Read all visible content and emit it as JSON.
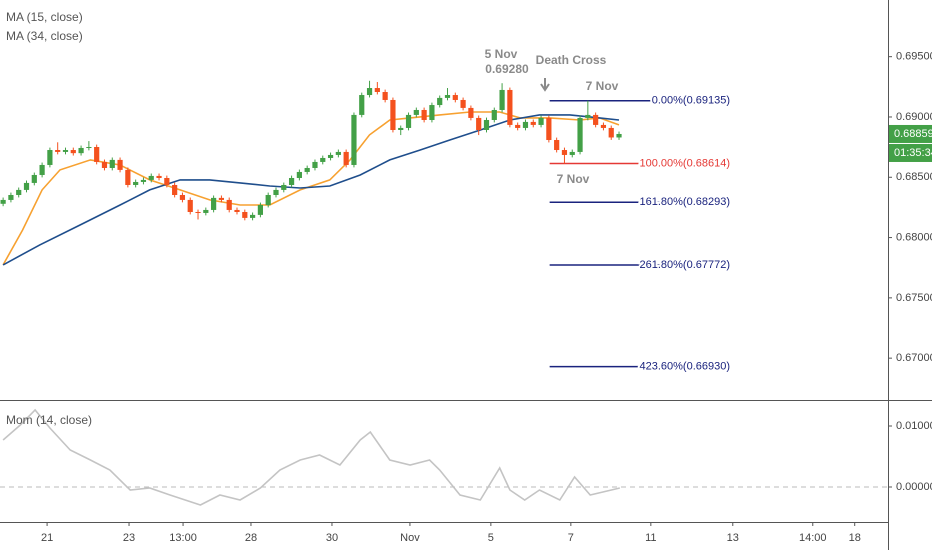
{
  "chart_data": [
    {
      "type": "candlestick",
      "up_color": "#43a047",
      "down_color": "#f4511e",
      "x": [
        0,
        1,
        2,
        3,
        4,
        5,
        6,
        7,
        8,
        9,
        10,
        11,
        12,
        13,
        14,
        15,
        16,
        17,
        18,
        19,
        20,
        21,
        22,
        23,
        24,
        25,
        26,
        27,
        28,
        29,
        30,
        31,
        32,
        33,
        34,
        35,
        36,
        37,
        38,
        39,
        40,
        41,
        42,
        43,
        44,
        45,
        46,
        47,
        48,
        49,
        50,
        51,
        52,
        53,
        54,
        55,
        56,
        57,
        58,
        59,
        60,
        61,
        62,
        63,
        64,
        65,
        66,
        67,
        68,
        69,
        70,
        71,
        72,
        73,
        74,
        75,
        76,
        77,
        78,
        79
      ],
      "open": [
        0.6828,
        0.68312,
        0.68353,
        0.68395,
        0.68453,
        0.68519,
        0.68602,
        0.68726,
        0.6871,
        0.68726,
        0.687,
        0.68743,
        0.68751,
        0.68627,
        0.68577,
        0.68644,
        0.68561,
        0.68436,
        0.68461,
        0.68478,
        0.68511,
        0.68494,
        0.68436,
        0.68353,
        0.68312,
        0.68212,
        0.68204,
        0.68229,
        0.68329,
        0.68312,
        0.68229,
        0.68212,
        0.68163,
        0.68188,
        0.6827,
        0.68353,
        0.68395,
        0.68436,
        0.68494,
        0.68544,
        0.68577,
        0.68627,
        0.6866,
        0.68685,
        0.6871,
        0.68602,
        0.69017,
        0.69182,
        0.6924,
        0.69207,
        0.69141,
        0.68892,
        0.68909,
        0.69017,
        0.69058,
        0.68975,
        0.69099,
        0.69158,
        0.69182,
        0.69141,
        0.69075,
        0.68992,
        0.68892,
        0.68975,
        0.69058,
        0.69224,
        0.68934,
        0.68909,
        0.68959,
        0.68934,
        0.68992,
        0.68809,
        0.68726,
        0.68685,
        0.6871,
        0.68992,
        0.69017,
        0.68934,
        0.68909,
        0.6883
      ],
      "high": [
        0.68332,
        0.68373,
        0.68415,
        0.68473,
        0.68539,
        0.68622,
        0.68746,
        0.6879,
        0.68746,
        0.68746,
        0.68763,
        0.688,
        0.68771,
        0.68647,
        0.68664,
        0.68664,
        0.68581,
        0.68481,
        0.68498,
        0.68531,
        0.68531,
        0.68514,
        0.68456,
        0.68373,
        0.68332,
        0.68232,
        0.68249,
        0.68349,
        0.68349,
        0.68332,
        0.68249,
        0.68232,
        0.68208,
        0.6829,
        0.68373,
        0.68415,
        0.68456,
        0.68514,
        0.68564,
        0.68597,
        0.68647,
        0.6868,
        0.68705,
        0.6873,
        0.6873,
        0.69037,
        0.69202,
        0.693,
        0.6929,
        0.69227,
        0.69161,
        0.68929,
        0.69037,
        0.69078,
        0.69078,
        0.69119,
        0.69178,
        0.6924,
        0.69202,
        0.69161,
        0.69095,
        0.69012,
        0.68995,
        0.69078,
        0.6928,
        0.69244,
        0.68954,
        0.68979,
        0.68979,
        0.69012,
        0.69012,
        0.68829,
        0.68746,
        0.6873,
        0.69012,
        0.69135,
        0.69037,
        0.68954,
        0.68929,
        0.68879
      ],
      "low": [
        0.6826,
        0.68292,
        0.68333,
        0.68375,
        0.68433,
        0.68499,
        0.68582,
        0.6869,
        0.6869,
        0.6868,
        0.6868,
        0.68723,
        0.68607,
        0.68557,
        0.68557,
        0.68541,
        0.68416,
        0.68416,
        0.68441,
        0.68458,
        0.68474,
        0.68416,
        0.68333,
        0.68292,
        0.68192,
        0.6815,
        0.68184,
        0.68209,
        0.68292,
        0.68209,
        0.68192,
        0.68143,
        0.68143,
        0.68168,
        0.6825,
        0.68333,
        0.68375,
        0.68416,
        0.68474,
        0.68524,
        0.68557,
        0.68607,
        0.6864,
        0.68665,
        0.68582,
        0.68582,
        0.68997,
        0.69162,
        0.69187,
        0.69121,
        0.68872,
        0.6885,
        0.68889,
        0.68997,
        0.68955,
        0.68955,
        0.69079,
        0.69138,
        0.69121,
        0.69055,
        0.68972,
        0.6885,
        0.68872,
        0.68955,
        0.69038,
        0.68914,
        0.68889,
        0.68889,
        0.68914,
        0.68914,
        0.68789,
        0.68706,
        0.68614,
        0.68665,
        0.6869,
        0.68972,
        0.68914,
        0.68889,
        0.6881,
        0.6881
      ],
      "close": [
        0.68312,
        0.68353,
        0.68395,
        0.68453,
        0.68519,
        0.68602,
        0.68726,
        0.6871,
        0.68726,
        0.687,
        0.68743,
        0.68751,
        0.68627,
        0.68577,
        0.68644,
        0.68561,
        0.68436,
        0.68461,
        0.68478,
        0.68511,
        0.68494,
        0.68436,
        0.68353,
        0.68312,
        0.68212,
        0.68204,
        0.68229,
        0.68329,
        0.68312,
        0.68229,
        0.68212,
        0.68163,
        0.68188,
        0.6827,
        0.68353,
        0.68395,
        0.68436,
        0.68494,
        0.68544,
        0.68577,
        0.68627,
        0.6866,
        0.68685,
        0.6871,
        0.68602,
        0.69017,
        0.69182,
        0.6924,
        0.69207,
        0.69141,
        0.68892,
        0.68909,
        0.69017,
        0.69058,
        0.68975,
        0.69099,
        0.69158,
        0.69182,
        0.69141,
        0.69075,
        0.68992,
        0.68892,
        0.68975,
        0.69058,
        0.69224,
        0.68934,
        0.68909,
        0.68959,
        0.68934,
        0.68992,
        0.68809,
        0.68726,
        0.68685,
        0.6871,
        0.68992,
        0.69017,
        0.68934,
        0.68909,
        0.6883,
        0.68859
      ],
      "series": [
        {
          "name": "MA (15, close)",
          "color": "#f7a130",
          "x": [
            0,
            2.5,
            5,
            7.3,
            11.2,
            15,
            18.8,
            22.7,
            26.5,
            30.4,
            34.2,
            38.1,
            41.9,
            44.5,
            47,
            49.6,
            52.2,
            56,
            59.9,
            63.7,
            66.3,
            70.1,
            74,
            76.5,
            79
          ],
          "values": [
            0.67773,
            0.68063,
            0.68395,
            0.68561,
            0.68644,
            0.68602,
            0.68478,
            0.68395,
            0.68312,
            0.6827,
            0.6827,
            0.68395,
            0.68478,
            0.68644,
            0.68851,
            0.68975,
            0.68992,
            0.69017,
            0.69041,
            0.69041,
            0.68992,
            0.68992,
            0.68975,
            0.68992,
            0.68934
          ]
        },
        {
          "name": "MA (34, close)",
          "color": "#1f4e8c",
          "x": [
            0,
            4.7,
            9.9,
            15,
            18.8,
            22.7,
            26.5,
            30.4,
            34.2,
            38.1,
            41.9,
            45.8,
            49.6,
            53.5,
            57.3,
            61.2,
            65,
            68.8,
            72.7,
            76.5,
            79
          ],
          "values": [
            0.67773,
            0.67939,
            0.68105,
            0.6827,
            0.68395,
            0.68478,
            0.68478,
            0.68453,
            0.68428,
            0.68411,
            0.68428,
            0.68519,
            0.68644,
            0.68726,
            0.68809,
            0.68892,
            0.68975,
            0.69017,
            0.69017,
            0.68992,
            0.68975
          ]
        }
      ],
      "xlim": [
        -0.4,
        113.5
      ],
      "ylim": [
        0.66653,
        0.6997
      ],
      "yticks": [
        {
          "value": 0.695,
          "label": "0.69500"
        },
        {
          "value": 0.69,
          "label": "0.69000"
        },
        {
          "value": 0.685,
          "label": "0.68500"
        },
        {
          "value": 0.68,
          "label": "0.68000"
        },
        {
          "value": 0.675,
          "label": "0.67500"
        },
        {
          "value": 0.67,
          "label": "0.67000"
        }
      ],
      "last_price": 0.68859,
      "countdown": "01:35:34",
      "last_color": "#43a047",
      "fib_range": [
        70.1,
        89.8
      ],
      "fib_levels": [
        {
          "value": 0.69135,
          "label": "0.00%(0.69135)",
          "color": "#1a237e"
        },
        {
          "value": 0.68614,
          "label": "100.00%(0.68614)",
          "color": "#e53935"
        },
        {
          "value": 0.68293,
          "label": "161.80%(0.68293)",
          "color": "#1a237e"
        },
        {
          "value": 0.67772,
          "label": "261.80%(0.67772)",
          "color": "#1a237e"
        },
        {
          "value": 0.6693,
          "label": "423.60%(0.66930)",
          "color": "#1a237e"
        }
      ],
      "annotations": [
        "5 Nov",
        "0.69280",
        "Death Cross",
        "7 Nov",
        "7 Nov"
      ]
    },
    {
      "type": "line",
      "series": [
        {
          "name": "Mom (14, close)",
          "color": "#c4c4c4",
          "x": [
            0,
            2.2,
            4.1,
            6,
            8.6,
            11.2,
            13.7,
            16.3,
            18.8,
            21.4,
            25.3,
            27.8,
            30.4,
            33,
            35.5,
            38.1,
            40.6,
            43.2,
            45.8,
            47.1,
            49.6,
            52.2,
            54.7,
            56,
            58.6,
            61.2,
            63.7,
            65,
            66.9,
            68.8,
            71.4,
            73.3,
            75.3,
            79.1
          ],
          "values": [
            0.0077,
            0.01016,
            0.01262,
            0.00967,
            0.00607,
            0.00443,
            0.00279,
            -0.00049,
            -0.00016,
            -0.00131,
            -0.00295,
            -0.00131,
            -0.00213,
            -0.00016,
            0.00279,
            0.00443,
            0.00525,
            0.00361,
            0.0077,
            0.00902,
            0.00443,
            0.00361,
            0.00443,
            0.00279,
            -0.00131,
            -0.00213,
            0.00311,
            -0.00049,
            -0.00213,
            -0.00049,
            -0.00213,
            0.00164,
            -0.00131,
            -0.00016
          ]
        }
      ],
      "xlim": [
        -0.4,
        113.5
      ],
      "ylim": [
        -0.00574,
        0.01377
      ],
      "yticks": [
        {
          "value": 0.01,
          "label": "0.01000"
        },
        {
          "value": 0,
          "label": "0.00000"
        }
      ],
      "zero_line": true,
      "xticks": [
        {
          "value": 5.64,
          "label": "21"
        },
        {
          "value": 16.15,
          "label": "23"
        },
        {
          "value": 23.08,
          "label": "13:00"
        },
        {
          "value": 31.79,
          "label": "28"
        },
        {
          "value": 42.18,
          "label": "30"
        },
        {
          "value": 52.18,
          "label": "Nov"
        },
        {
          "value": 62.56,
          "label": "5"
        },
        {
          "value": 72.82,
          "label": "7"
        },
        {
          "value": 83.08,
          "label": "11"
        },
        {
          "value": 93.59,
          "label": "13"
        },
        {
          "value": 103.85,
          "label": "14:00"
        },
        {
          "value": 109.23,
          "label": "18"
        }
      ]
    }
  ]
}
